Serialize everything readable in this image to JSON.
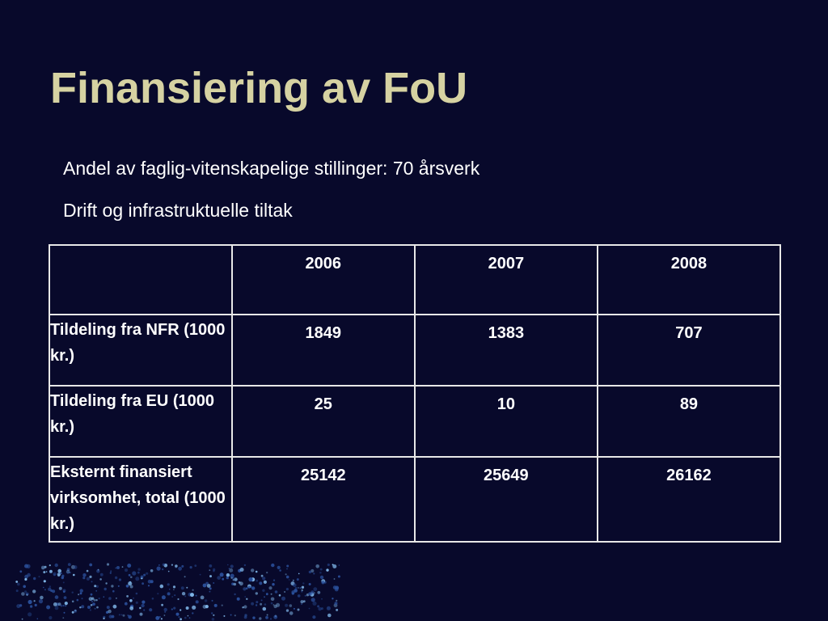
{
  "header": {
    "title": "Finansiering av FoU"
  },
  "lines": [
    "Andel av faglig-vitenskapelige stillinger: 70 årsverk",
    "Drift og infrastruktuelle tiltak"
  ],
  "table": {
    "columns": [
      "2006",
      "2007",
      "2008"
    ],
    "rows": [
      [
        "Tildeling fra NFR (1000 kr.)",
        "1849",
        "1383",
        "707"
      ],
      [
        "Tildeling fra EU (1000 kr.)",
        "25",
        "10",
        "89"
      ],
      [
        "Eksternt finansiert virksomhet, total (1000 kr.)",
        "25142",
        "25649",
        "26162"
      ]
    ]
  }
}
